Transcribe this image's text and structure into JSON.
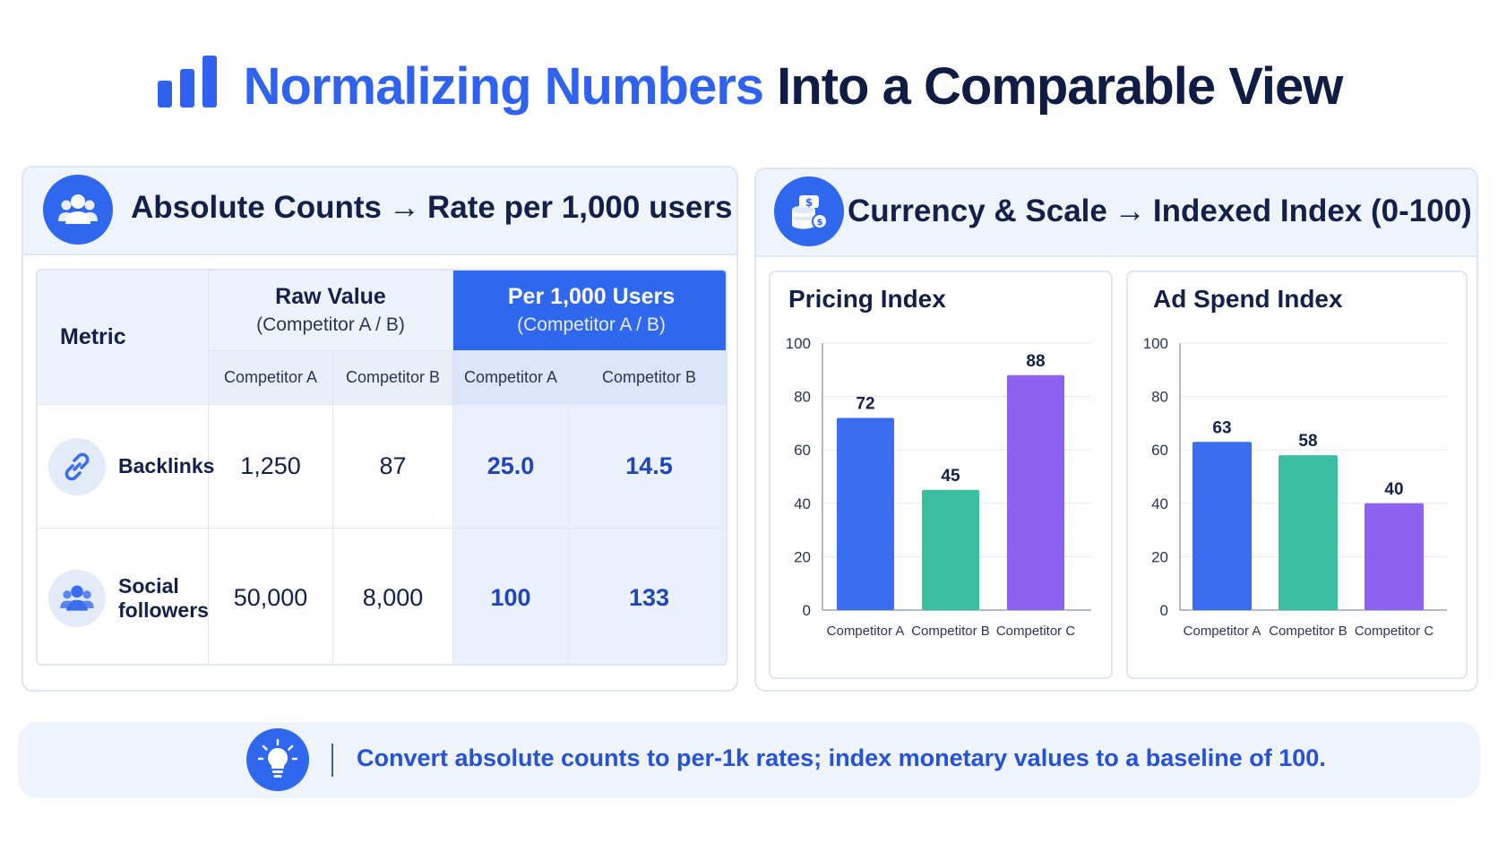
{
  "header": {
    "title_accent": "Normalizing Numbers",
    "title_rest": "Into a Comparable View",
    "icon": "bar-chart-icon",
    "accent_color": "#2f63ef"
  },
  "left_panel": {
    "icon": "users-icon",
    "title": "Absolute Counts",
    "arrow": "→",
    "title_suffix": "Rate per 1,000 users",
    "table": {
      "metric_header": "Metric",
      "group_raw": {
        "label": "Raw Value",
        "sub": "(Competitor A / B)"
      },
      "group_rate": {
        "label": "Per 1,000 Users",
        "sub": "(Competitor A / B)"
      },
      "sub_headers": [
        "Competitor A",
        "Competitor B",
        "Competitor A",
        "Competitor B"
      ],
      "rows": [
        {
          "metric": "Backlinks",
          "icon": "link-icon",
          "raw_a": "1,250",
          "raw_b": "87",
          "rate_a": "25.0",
          "rate_b": "14.5"
        },
        {
          "metric_line1": "Social",
          "metric_line2": "followers",
          "icon": "users-icon",
          "raw_a": "50,000",
          "raw_b": "8,000",
          "rate_a": "100",
          "rate_b": "133"
        }
      ]
    }
  },
  "right_panel": {
    "icon": "coins-icon",
    "title": "Currency & Scale",
    "arrow": "→",
    "title_suffix": "Indexed Index (0-100)"
  },
  "chart_data": [
    {
      "type": "bar",
      "title": "Pricing Index",
      "categories": [
        "Competitor A",
        "Competitor B",
        "Competitor C"
      ],
      "values": [
        72,
        45,
        88
      ],
      "ylim": [
        0,
        100
      ],
      "yticks": [
        0,
        20,
        40,
        60,
        80,
        100
      ],
      "grid": true,
      "colors": [
        "#3a6cf0",
        "#3bbfa0",
        "#8b63f0"
      ]
    },
    {
      "type": "bar",
      "title": "Ad Spend Index",
      "categories": [
        "Competitor A",
        "Competitor B",
        "Competitor C"
      ],
      "values": [
        63,
        58,
        40
      ],
      "ylim": [
        0,
        100
      ],
      "yticks": [
        0,
        20,
        40,
        60,
        80,
        100
      ],
      "grid": true,
      "colors": [
        "#3a6cf0",
        "#3bbfa0",
        "#8b63f0"
      ]
    }
  ],
  "footer": {
    "icon": "lightbulb-icon",
    "text": "Convert absolute counts to per-1k rates; index monetary values to a baseline of 100."
  },
  "colors": {
    "primary": "#2f67ef",
    "rate_text": "#1e46b8",
    "rate_bg": "#eaf0fc",
    "header_bg": "#eef3fc"
  }
}
